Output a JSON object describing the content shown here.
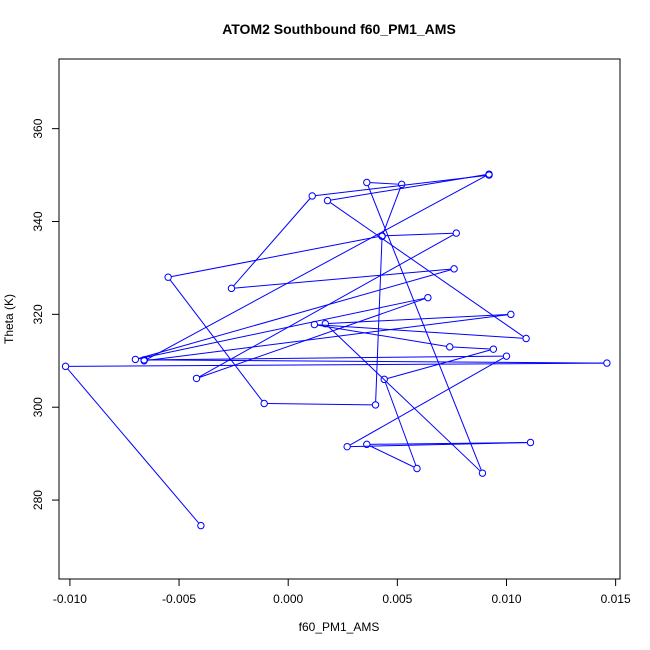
{
  "chart_data": {
    "type": "line",
    "title": "ATOM2 Southbound f60_PM1_AMS",
    "xlabel": "f60_PM1_AMS",
    "ylabel": "Theta (K)",
    "xlim": [
      -0.0105,
      0.0152
    ],
    "ylim": [
      263,
      375
    ],
    "x_ticks": [
      -0.01,
      -0.005,
      0.0,
      0.005,
      0.01,
      0.015
    ],
    "x_tick_labels": [
      "-0.010",
      "-0.005",
      "0.000",
      "0.005",
      "0.010",
      "0.015"
    ],
    "y_ticks": [
      280,
      300,
      320,
      340,
      360
    ],
    "y_tick_labels": [
      "280",
      "300",
      "320",
      "340",
      "360"
    ],
    "grid": false,
    "series_color": "#0000ff",
    "marker": "open-circle",
    "series": [
      {
        "x": [
          -0.004,
          -0.0102,
          0.0146,
          -0.0066,
          0.01,
          0.0027,
          0.0111,
          0.0036,
          0.0059,
          0.0044,
          0.0094,
          0.0074,
          0.0012,
          0.0109,
          0.0018,
          0.0092,
          -0.0066,
          0.0102,
          0.0017,
          0.0089,
          0.0036,
          0.0052,
          0.0043,
          0.004,
          -0.0011,
          -0.0055,
          0.0043,
          0.0077,
          -0.0042,
          0.0064,
          -0.007,
          0.0076,
          -0.0026,
          0.0011,
          0.0092
        ],
        "y": [
          274.5,
          308.8,
          309.5,
          310.2,
          311.0,
          291.5,
          292.4,
          292.0,
          286.8,
          306.0,
          312.5,
          313.0,
          317.8,
          314.8,
          344.5,
          350.2,
          310.0,
          320.0,
          318.0,
          285.8,
          348.4,
          348.0,
          336.8,
          300.5,
          300.8,
          328.0,
          336.9,
          337.5,
          306.2,
          323.6,
          310.3,
          329.8,
          325.6,
          345.5,
          350.0
        ]
      }
    ]
  }
}
